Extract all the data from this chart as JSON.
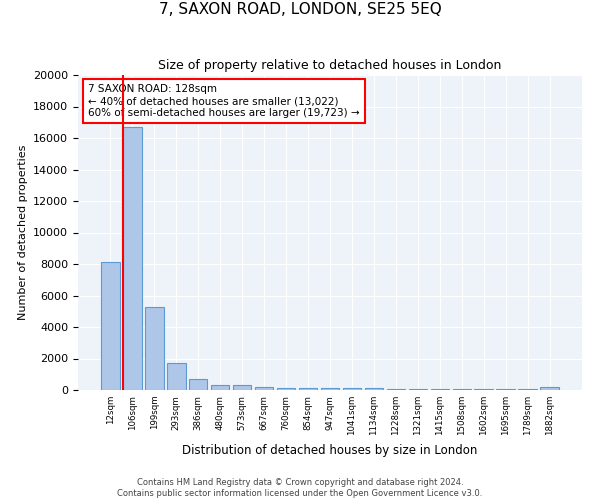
{
  "title": "7, SAXON ROAD, LONDON, SE25 5EQ",
  "subtitle": "Size of property relative to detached houses in London",
  "xlabel": "Distribution of detached houses by size in London",
  "ylabel": "Number of detached properties",
  "bin_labels": [
    "12sqm",
    "106sqm",
    "199sqm",
    "293sqm",
    "386sqm",
    "480sqm",
    "573sqm",
    "667sqm",
    "760sqm",
    "854sqm",
    "947sqm",
    "1041sqm",
    "1134sqm",
    "1228sqm",
    "1321sqm",
    "1415sqm",
    "1508sqm",
    "1602sqm",
    "1695sqm",
    "1789sqm",
    "1882sqm"
  ],
  "bar_heights": [
    8100,
    16700,
    5300,
    1700,
    700,
    300,
    300,
    200,
    150,
    130,
    120,
    110,
    100,
    95,
    90,
    85,
    80,
    75,
    70,
    70,
    200
  ],
  "bar_color": "#aec6e8",
  "bar_edge_color": "#5b9bd5",
  "red_line_x": 1,
  "annotation_line1": "7 SAXON ROAD: 128sqm",
  "annotation_line2": "← 40% of detached houses are smaller (13,022)",
  "annotation_line3": "60% of semi-detached houses are larger (19,723) →",
  "annotation_box_color": "white",
  "annotation_box_edge_color": "red",
  "ylim": [
    0,
    20000
  ],
  "yticks": [
    0,
    2000,
    4000,
    6000,
    8000,
    10000,
    12000,
    14000,
    16000,
    18000,
    20000
  ],
  "background_color": "#eef3fa",
  "grid_color": "white",
  "footer_line1": "Contains HM Land Registry data © Crown copyright and database right 2024.",
  "footer_line2": "Contains public sector information licensed under the Open Government Licence v3.0."
}
